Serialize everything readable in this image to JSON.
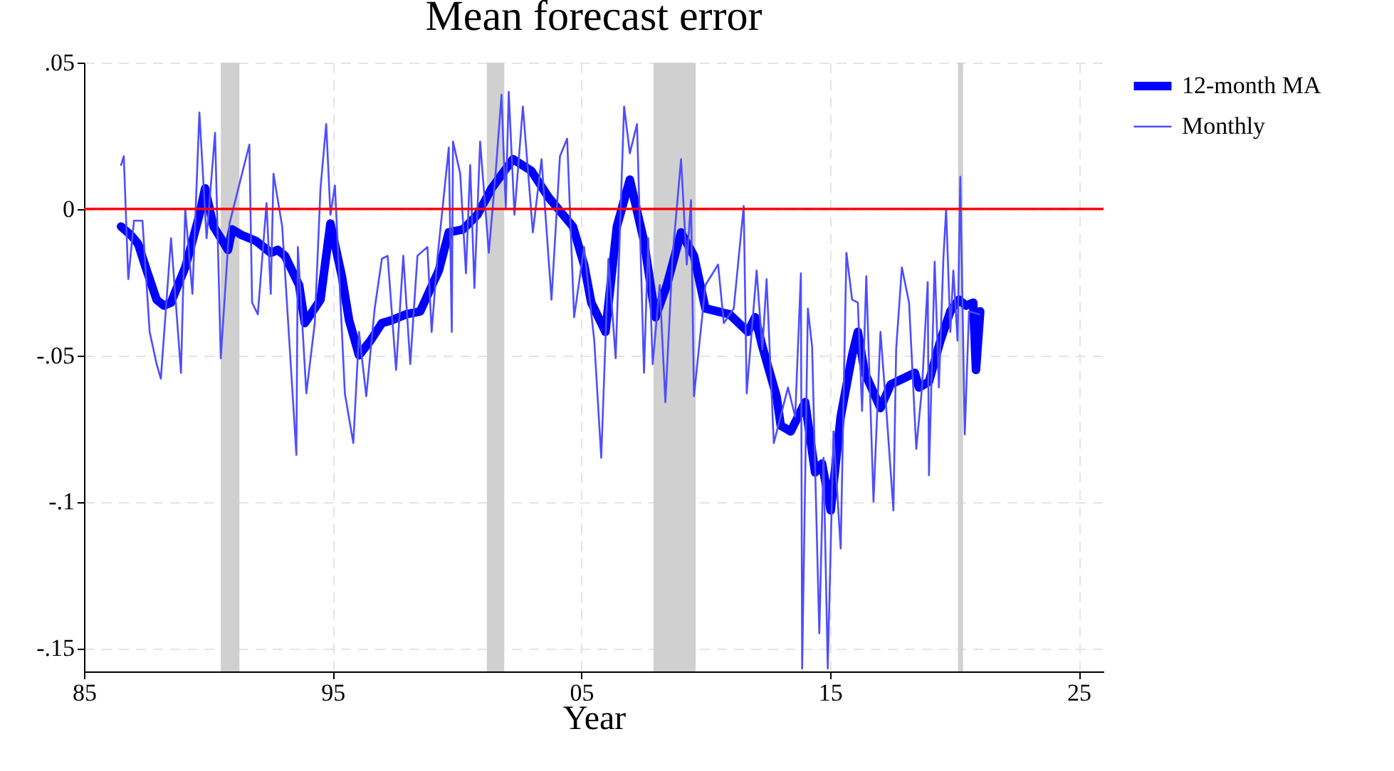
{
  "chart_data": {
    "type": "line",
    "title": "Mean forecast error",
    "xlabel": "Year",
    "xlim": [
      1985,
      2026
    ],
    "xticks": [
      {
        "value": 1985,
        "label": "85"
      },
      {
        "value": 1995,
        "label": "95"
      },
      {
        "value": 2005,
        "label": "05"
      },
      {
        "value": 2015,
        "label": "15"
      },
      {
        "value": 2025,
        "label": "25"
      }
    ],
    "ylim": [
      -0.158,
      0.05
    ],
    "yticks": [
      {
        "value": -0.15,
        "label": "-.15"
      },
      {
        "value": -0.1,
        "label": "-.1"
      },
      {
        "value": -0.05,
        "label": "-.05"
      },
      {
        "value": 0,
        "label": "0"
      },
      {
        "value": 0.05,
        "label": ".05"
      }
    ],
    "grid": true,
    "legend": "right",
    "ref_lines": [
      {
        "axis": "y",
        "value": 0,
        "color": "#ff0000"
      }
    ],
    "bands": [
      {
        "axis": "x",
        "from": 1990.5,
        "to": 1991.25,
        "color": "#d0d0d0"
      },
      {
        "axis": "x",
        "from": 2001.2,
        "to": 2001.9,
        "color": "#d0d0d0"
      },
      {
        "axis": "x",
        "from": 2007.9,
        "to": 2009.6,
        "color": "#d0d0d0"
      },
      {
        "axis": "x",
        "from": 2020.15,
        "to": 2020.35,
        "color": "#d0d0d0"
      }
    ],
    "series": [
      {
        "name": "12-month MA",
        "color": "#0000ff",
        "x": [
          1986.49,
          1986.89,
          1987.18,
          1987.52,
          1987.92,
          1988.21,
          1988.5,
          1988.78,
          1989.07,
          1989.36,
          1989.64,
          1989.87,
          1990.21,
          1990.5,
          1990.79,
          1990.96,
          1991.36,
          1991.93,
          1992.51,
          1992.79,
          1993.08,
          1993.65,
          1993.88,
          1994.51,
          1994.91,
          1995.37,
          1995.66,
          1996.06,
          1996.52,
          1996.98,
          1997.38,
          1997.95,
          1998.52,
          1999.27,
          1999.67,
          2000.24,
          2000.82,
          2001.39,
          2002.25,
          2002.99,
          2003.68,
          2004.66,
          2005.11,
          2005.4,
          2005.97,
          2006.43,
          2006.95,
          2007.52,
          2007.98,
          2008.44,
          2009.01,
          2009.53,
          2009.99,
          2010.96,
          2011.7,
          2011.99,
          2012.28,
          2012.85,
          2013.02,
          2013.42,
          2014.0,
          2014.4,
          2014.68,
          2015.03,
          2015.43,
          2015.89,
          2016.12,
          2016.4,
          2017.03,
          2017.44,
          2018.41,
          2018.58,
          2018.98,
          2019.44,
          2019.84,
          2020.18,
          2020.47,
          2020.76,
          2020.87,
          2021.04
        ],
        "values": [
          -0.006,
          -0.009,
          -0.012,
          -0.021,
          -0.031,
          -0.033,
          -0.032,
          -0.026,
          -0.02,
          -0.011,
          -0.002,
          0.007,
          -0.006,
          -0.01,
          -0.014,
          -0.007,
          -0.009,
          -0.011,
          -0.015,
          -0.014,
          -0.016,
          -0.026,
          -0.039,
          -0.031,
          -0.005,
          -0.023,
          -0.038,
          -0.05,
          -0.045,
          -0.039,
          -0.038,
          -0.036,
          -0.035,
          -0.021,
          -0.008,
          -0.007,
          -0.002,
          0.007,
          0.017,
          0.013,
          0.004,
          -0.006,
          -0.019,
          -0.032,
          -0.042,
          -0.006,
          0.01,
          -0.011,
          -0.037,
          -0.026,
          -0.008,
          -0.016,
          -0.034,
          -0.036,
          -0.042,
          -0.037,
          -0.047,
          -0.064,
          -0.074,
          -0.076,
          -0.066,
          -0.09,
          -0.087,
          -0.103,
          -0.071,
          -0.05,
          -0.042,
          -0.056,
          -0.068,
          -0.06,
          -0.056,
          -0.061,
          -0.059,
          -0.045,
          -0.035,
          -0.031,
          -0.033,
          -0.032,
          -0.055,
          -0.035
        ]
      },
      {
        "name": "Monthly",
        "color": "#4d4dff",
        "x": [
          1986.49,
          1986.6,
          1986.78,
          1987.01,
          1987.35,
          1987.64,
          1987.92,
          1988.09,
          1988.5,
          1988.9,
          1989.07,
          1989.36,
          1989.64,
          1989.93,
          1990.27,
          1990.5,
          1990.85,
          1991.65,
          1991.76,
          1991.99,
          1992.34,
          1992.51,
          1992.62,
          1992.97,
          1993.54,
          1993.6,
          1993.94,
          1994.28,
          1994.51,
          1994.74,
          1994.91,
          1995.09,
          1995.49,
          1995.83,
          1996.06,
          1996.35,
          1996.69,
          1996.98,
          1997.21,
          1997.55,
          1997.84,
          1998.12,
          1998.41,
          1998.81,
          1998.98,
          1999.21,
          1999.67,
          1999.79,
          1999.84,
          2000.13,
          2000.36,
          2000.53,
          2000.7,
          2000.93,
          2001.28,
          2001.56,
          2001.79,
          2001.96,
          2002.08,
          2002.31,
          2002.65,
          2003.05,
          2003.4,
          2003.8,
          2004.14,
          2004.43,
          2004.71,
          2005.11,
          2005.52,
          2005.8,
          2006.09,
          2006.38,
          2006.72,
          2006.95,
          2007.24,
          2007.52,
          2007.69,
          2007.87,
          2008.15,
          2008.38,
          2008.67,
          2009.01,
          2009.24,
          2009.41,
          2009.53,
          2009.99,
          2010.5,
          2010.73,
          2011.13,
          2011.53,
          2011.65,
          2012.05,
          2012.28,
          2012.45,
          2012.74,
          2013.31,
          2013.6,
          2013.83,
          2013.88,
          2014.11,
          2014.28,
          2014.57,
          2014.74,
          2014.91,
          2015.14,
          2015.43,
          2015.66,
          2015.89,
          2016.12,
          2016.29,
          2016.46,
          2016.75,
          2017.03,
          2017.26,
          2017.55,
          2017.66,
          2017.89,
          2018.18,
          2018.47,
          2018.7,
          2018.93,
          2018.98,
          2019.21,
          2019.38,
          2019.56,
          2019.67,
          2019.84,
          2019.96,
          2020.13,
          2020.24,
          2020.42,
          2020.59,
          2021.0
        ],
        "values": [
          0.015,
          0.018,
          -0.024,
          -0.004,
          -0.004,
          -0.042,
          -0.053,
          -0.058,
          -0.01,
          -0.056,
          0,
          -0.029,
          0.033,
          -0.01,
          0.026,
          -0.051,
          -0.005,
          0.022,
          -0.032,
          -0.036,
          0.002,
          -0.029,
          0.012,
          -0.006,
          -0.084,
          -0.013,
          -0.063,
          -0.039,
          0.007,
          0.029,
          -0.002,
          0.008,
          -0.063,
          -0.08,
          -0.042,
          -0.064,
          -0.034,
          -0.017,
          -0.016,
          -0.055,
          -0.016,
          -0.053,
          -0.016,
          -0.013,
          -0.042,
          -0.017,
          0.021,
          -0.042,
          0.023,
          0.012,
          -0.022,
          0.015,
          -0.027,
          0.023,
          -0.015,
          0.013,
          0.039,
          0,
          0.04,
          -0.002,
          0.035,
          -0.008,
          0.017,
          -0.031,
          0.018,
          0.024,
          -0.037,
          -0.013,
          -0.045,
          -0.085,
          -0.017,
          -0.051,
          0.035,
          0.019,
          0.029,
          -0.056,
          -0.01,
          -0.053,
          -0.026,
          -0.066,
          -0.016,
          0.017,
          -0.019,
          0.003,
          -0.064,
          -0.026,
          -0.019,
          -0.039,
          -0.034,
          0.001,
          -0.063,
          -0.021,
          -0.048,
          -0.024,
          -0.08,
          -0.061,
          -0.071,
          -0.022,
          -0.157,
          -0.034,
          -0.047,
          -0.145,
          -0.085,
          -0.157,
          -0.076,
          -0.116,
          -0.015,
          -0.031,
          -0.032,
          -0.069,
          -0.023,
          -0.1,
          -0.042,
          -0.068,
          -0.103,
          -0.048,
          -0.02,
          -0.032,
          -0.082,
          -0.061,
          -0.025,
          -0.091,
          -0.018,
          -0.061,
          -0.017,
          0,
          -0.042,
          -0.021,
          -0.045,
          0.011,
          -0.077,
          -0.035,
          -0.036
        ]
      }
    ]
  }
}
